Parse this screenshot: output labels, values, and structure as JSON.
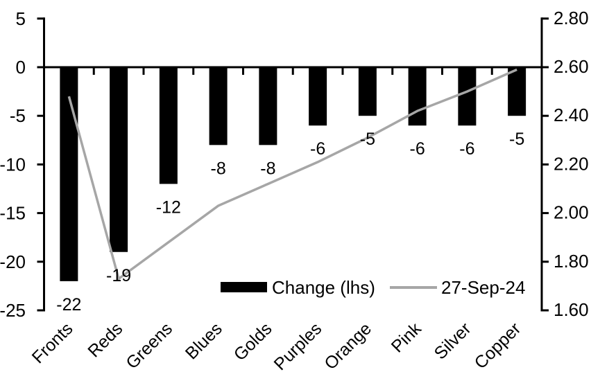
{
  "chart_data": {
    "type": "combo",
    "subtype": "bar+line dual axis",
    "title": "",
    "categories": [
      "Fronts",
      "Reds",
      "Greens",
      "Blues",
      "Golds",
      "Purples",
      "Orange",
      "Pink",
      "Silver",
      "Copper"
    ],
    "series": [
      {
        "name": "Change (lhs)",
        "type": "bar",
        "axis": "left",
        "color": "#000000",
        "values": [
          -22,
          -19,
          -12,
          -8,
          -8,
          -6,
          -5,
          -6,
          -6,
          -5
        ],
        "data_labels": [
          "-22",
          "-19",
          "-12",
          "-8",
          "-8",
          "-6",
          "-5",
          "-6",
          "-6",
          "-5"
        ]
      },
      {
        "name": "27-Sep-24",
        "type": "line",
        "axis": "right",
        "color": "#a6a6a6",
        "values": [
          2.48,
          1.73,
          1.88,
          2.03,
          2.12,
          2.21,
          2.31,
          2.42,
          2.5,
          2.59
        ]
      }
    ],
    "left_axis": {
      "min": -25,
      "max": 5,
      "step": 5,
      "tick_labels": [
        "5",
        "0",
        "-5",
        "-10",
        "-15",
        "-20",
        "-25"
      ]
    },
    "right_axis": {
      "min": 1.6,
      "max": 2.8,
      "step": 0.2,
      "tick_labels": [
        "2.80",
        "2.60",
        "2.40",
        "2.20",
        "2.00",
        "1.80",
        "1.60"
      ]
    },
    "legend": {
      "position": "bottom-inside",
      "items": [
        {
          "label": "Change (lhs)",
          "swatch": "bar"
        },
        {
          "label": "27-Sep-24",
          "swatch": "line"
        }
      ]
    },
    "grid": "off",
    "category_label_rotation_deg": -45
  },
  "colors": {
    "bar": "#000000",
    "line": "#a6a6a6",
    "axis": "#000000",
    "text": "#000000",
    "background": "#ffffff"
  }
}
